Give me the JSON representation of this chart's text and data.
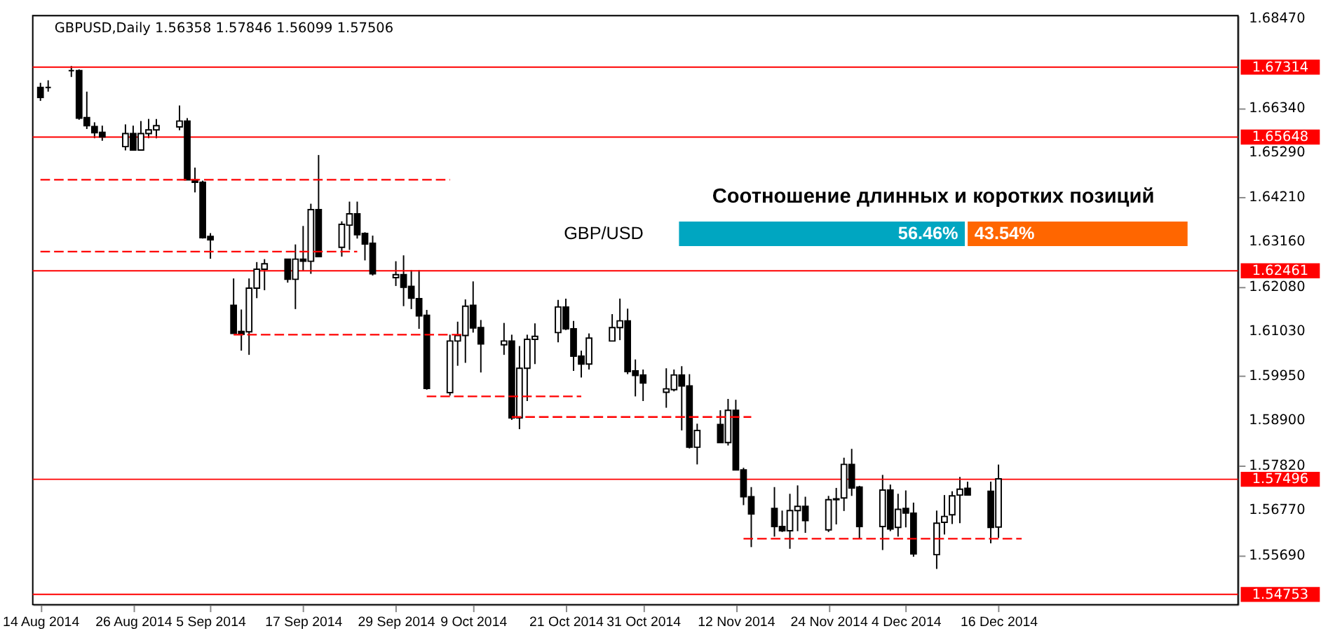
{
  "chart_data": [
    {
      "type": "candlestick",
      "title": "GBPUSD,Daily 1.56358 1.57846 1.56099 1.57506",
      "x": [
        "2014-08-14",
        "2014-08-15",
        "2014-08-18",
        "2014-08-19",
        "2014-08-20",
        "2014-08-21",
        "2014-08-22",
        "2014-08-25",
        "2014-08-26",
        "2014-08-27",
        "2014-08-28",
        "2014-08-29",
        "2014-09-01",
        "2014-09-02",
        "2014-09-03",
        "2014-09-04",
        "2014-09-05",
        "2014-09-08",
        "2014-09-09",
        "2014-09-10",
        "2014-09-11",
        "2014-09-12",
        "2014-09-15",
        "2014-09-16",
        "2014-09-17",
        "2014-09-18",
        "2014-09-19",
        "2014-09-22",
        "2014-09-23",
        "2014-09-24",
        "2014-09-25",
        "2014-09-26",
        "2014-09-29",
        "2014-09-30",
        "2014-10-01",
        "2014-10-02",
        "2014-10-03",
        "2014-10-06",
        "2014-10-07",
        "2014-10-08",
        "2014-10-09",
        "2014-10-10",
        "2014-10-13",
        "2014-10-14",
        "2014-10-15",
        "2014-10-16",
        "2014-10-17",
        "2014-10-20",
        "2014-10-21",
        "2014-10-22",
        "2014-10-23",
        "2014-10-24",
        "2014-10-27",
        "2014-10-28",
        "2014-10-29",
        "2014-10-30",
        "2014-10-31",
        "2014-11-03",
        "2014-11-04",
        "2014-11-05",
        "2014-11-06",
        "2014-11-07",
        "2014-11-10",
        "2014-11-11",
        "2014-11-12",
        "2014-11-13",
        "2014-11-14",
        "2014-11-17",
        "2014-11-18",
        "2014-11-19",
        "2014-11-20",
        "2014-11-21",
        "2014-11-24",
        "2014-11-25",
        "2014-11-26",
        "2014-11-27",
        "2014-11-28",
        "2014-12-01",
        "2014-12-02",
        "2014-12-03",
        "2014-12-04",
        "2014-12-05",
        "2014-12-08",
        "2014-12-09",
        "2014-12-10",
        "2014-12-11",
        "2014-12-12",
        "2014-12-15",
        "2014-12-16"
      ],
      "ohlc": [
        [
          1.6683,
          1.6694,
          1.6651,
          1.6659
        ],
        [
          1.6683,
          1.67,
          1.6673,
          1.6683
        ],
        [
          1.6723,
          1.6734,
          1.6708,
          1.6723
        ],
        [
          1.6723,
          1.6726,
          1.6606,
          1.661
        ],
        [
          1.6611,
          1.6673,
          1.6584,
          1.6592
        ],
        [
          1.659,
          1.66,
          1.6562,
          1.6575
        ],
        [
          1.6576,
          1.6592,
          1.6556,
          1.6565
        ],
        [
          1.6542,
          1.6595,
          1.6533,
          1.6573
        ],
        [
          1.6573,
          1.6592,
          1.6534,
          1.6534
        ],
        [
          1.6534,
          1.6603,
          1.6534,
          1.6573
        ],
        [
          1.6573,
          1.6608,
          1.6562,
          1.6582
        ],
        [
          1.6582,
          1.6608,
          1.6562,
          1.6592
        ],
        [
          1.6589,
          1.664,
          1.6581,
          1.6603
        ],
        [
          1.6603,
          1.661,
          1.6463,
          1.6463
        ],
        [
          1.6463,
          1.6492,
          1.6433,
          1.6457
        ],
        [
          1.6457,
          1.6461,
          1.6323,
          1.6325
        ],
        [
          1.6328,
          1.6336,
          1.6275,
          1.632
        ],
        [
          1.6164,
          1.6228,
          1.6097,
          1.6097
        ],
        [
          1.6102,
          1.6154,
          1.6056,
          1.6095
        ],
        [
          1.6101,
          1.6228,
          1.6046,
          1.6205
        ],
        [
          1.6205,
          1.6267,
          1.6181,
          1.625
        ],
        [
          1.625,
          1.6274,
          1.62,
          1.6263
        ],
        [
          1.6274,
          1.6274,
          1.6218,
          1.6226
        ],
        [
          1.6226,
          1.6309,
          1.6155,
          1.6274
        ],
        [
          1.6274,
          1.6353,
          1.6246,
          1.6269
        ],
        [
          1.6269,
          1.6406,
          1.6239,
          1.6392
        ],
        [
          1.6392,
          1.6522,
          1.628,
          1.628
        ],
        [
          1.6302,
          1.6364,
          1.628,
          1.6357
        ],
        [
          1.6355,
          1.6411,
          1.6296,
          1.6382
        ],
        [
          1.6382,
          1.6411,
          1.6323,
          1.6332
        ],
        [
          1.6335,
          1.6338,
          1.6271,
          1.631
        ],
        [
          1.6312,
          1.633,
          1.6235,
          1.6239
        ],
        [
          1.623,
          1.6269,
          1.621,
          1.6237
        ],
        [
          1.6237,
          1.6283,
          1.6162,
          1.6207
        ],
        [
          1.6209,
          1.6248,
          1.6155,
          1.6181
        ],
        [
          1.618,
          1.6248,
          1.6108,
          1.6139
        ],
        [
          1.614,
          1.6153,
          1.5963,
          1.5966
        ],
        [
          1.5956,
          1.6094,
          1.5949,
          1.6079
        ],
        [
          1.6079,
          1.6125,
          1.602,
          1.6092
        ],
        [
          1.6092,
          1.6178,
          1.6027,
          1.6162
        ],
        [
          1.6164,
          1.6221,
          1.6099,
          1.611
        ],
        [
          1.6111,
          1.6129,
          1.6004,
          1.6072
        ],
        [
          1.607,
          1.6122,
          1.6046,
          1.6079
        ],
        [
          1.6079,
          1.6094,
          1.5891,
          1.5896
        ],
        [
          1.5896,
          1.6067,
          1.5869,
          1.6014
        ],
        [
          1.6014,
          1.6094,
          1.5936,
          1.6083
        ],
        [
          1.6083,
          1.6121,
          1.6024,
          1.609
        ],
        [
          1.6099,
          1.6177,
          1.6076,
          1.616
        ],
        [
          1.616,
          1.618,
          1.6105,
          1.6108
        ],
        [
          1.6108,
          1.6127,
          1.6008,
          1.6043
        ],
        [
          1.6043,
          1.6056,
          1.5992,
          1.6024
        ],
        [
          1.6024,
          1.6097,
          1.6011,
          1.6086
        ],
        [
          1.6079,
          1.6143,
          1.6079,
          1.6111
        ],
        [
          1.6111,
          1.618,
          1.6081,
          1.6127
        ],
        [
          1.6127,
          1.6156,
          1.6,
          1.6006
        ],
        [
          1.6008,
          1.6035,
          1.5947,
          1.5997
        ],
        [
          1.5998,
          1.6011,
          1.5936,
          1.5979
        ],
        [
          1.5957,
          1.6014,
          1.592,
          1.5965
        ],
        [
          1.5963,
          1.6011,
          1.5959,
          1.5998
        ],
        [
          1.5998,
          1.6019,
          1.5866,
          1.5972
        ],
        [
          1.5972,
          1.6,
          1.5823,
          1.5826
        ],
        [
          1.5826,
          1.5882,
          1.5785,
          1.5866
        ],
        [
          1.588,
          1.5914,
          1.5837,
          1.5837
        ],
        [
          1.5837,
          1.5941,
          1.583,
          1.5914
        ],
        [
          1.5914,
          1.5939,
          1.5772,
          1.5772
        ],
        [
          1.5772,
          1.5777,
          1.5688,
          1.5708
        ],
        [
          1.5708,
          1.5731,
          1.5588,
          1.5667
        ],
        [
          1.568,
          1.5731,
          1.5613,
          1.5637
        ],
        [
          1.5637,
          1.5675,
          1.5624,
          1.5627
        ],
        [
          1.5627,
          1.5715,
          1.5584,
          1.5675
        ],
        [
          1.5675,
          1.5735,
          1.5626,
          1.5685
        ],
        [
          1.5685,
          1.5708,
          1.5622,
          1.5651
        ],
        [
          1.5629,
          1.571,
          1.5624,
          1.5701
        ],
        [
          1.5701,
          1.5729,
          1.5642,
          1.5703
        ],
        [
          1.5705,
          1.5801,
          1.5674,
          1.5785
        ],
        [
          1.5785,
          1.5822,
          1.571,
          1.5729
        ],
        [
          1.5731,
          1.5734,
          1.5608,
          1.5637
        ],
        [
          1.5637,
          1.576,
          1.5581,
          1.5724
        ],
        [
          1.5724,
          1.5737,
          1.5626,
          1.5631
        ],
        [
          1.5635,
          1.5715,
          1.5613,
          1.5678
        ],
        [
          1.568,
          1.5723,
          1.5635,
          1.5669
        ],
        [
          1.5669,
          1.5694,
          1.5565,
          1.5572
        ],
        [
          1.557,
          1.5675,
          1.5536,
          1.5645
        ],
        [
          1.5647,
          1.5712,
          1.5618,
          1.5661
        ],
        [
          1.5665,
          1.5721,
          1.5643,
          1.571
        ],
        [
          1.5712,
          1.5755,
          1.5645,
          1.5726
        ],
        [
          1.5728,
          1.5744,
          1.5712,
          1.5712
        ],
        [
          1.5721,
          1.5744,
          1.5597,
          1.5635
        ],
        [
          1.56358,
          1.57846,
          1.56099,
          1.57506
        ]
      ],
      "xlim": [
        "2014-08-13",
        "2015-01-16"
      ],
      "ylim": [
        1.5451,
        1.6854
      ],
      "yticks": [
        {
          "value": 1.6847,
          "label": "1.68470"
        },
        {
          "value": 1.6634,
          "label": "1.66340"
        },
        {
          "value": 1.6529,
          "label": "1.65290"
        },
        {
          "value": 1.6421,
          "label": "1.64210"
        },
        {
          "value": 1.6316,
          "label": "1.63160"
        },
        {
          "value": 1.6208,
          "label": "1.62080"
        },
        {
          "value": 1.6103,
          "label": "1.61030"
        },
        {
          "value": 1.5995,
          "label": "1.59950"
        },
        {
          "value": 1.589,
          "label": "1.58900"
        },
        {
          "value": 1.5782,
          "label": "1.57820"
        },
        {
          "value": 1.5677,
          "label": "1.56770"
        },
        {
          "value": 1.5569,
          "label": "1.55690"
        }
      ],
      "xticks": [
        {
          "value": "2014-08-14",
          "label": "14 Aug 2014"
        },
        {
          "value": "2014-08-26",
          "label": "26 Aug 2014"
        },
        {
          "value": "2014-09-05",
          "label": "5 Sep 2014"
        },
        {
          "value": "2014-09-17",
          "label": "17 Sep 2014"
        },
        {
          "value": "2014-09-29",
          "label": "29 Sep 2014"
        },
        {
          "value": "2014-10-09",
          "label": "9 Oct 2014"
        },
        {
          "value": "2014-10-21",
          "label": "21 Oct 2014"
        },
        {
          "value": "2014-10-31",
          "label": "31 Oct 2014"
        },
        {
          "value": "2014-11-12",
          "label": "12 Nov 2014"
        },
        {
          "value": "2014-11-24",
          "label": "24 Nov 2014"
        },
        {
          "value": "2014-12-04",
          "label": "4 Dec 2014"
        },
        {
          "value": "2014-12-16",
          "label": "16 Dec 2014"
        }
      ],
      "grid": false,
      "ref_lines": [
        {
          "axis": "y",
          "value": 1.67314,
          "label": "1.67314",
          "color": "#ff0000"
        },
        {
          "axis": "y",
          "value": 1.65648,
          "label": "1.65648",
          "color": "#ff0000"
        },
        {
          "axis": "y",
          "value": 1.62461,
          "label": "1.62461",
          "color": "#ff0000"
        },
        {
          "axis": "y",
          "value": 1.57496,
          "label": "1.57496",
          "color": "#ff0000"
        },
        {
          "axis": "y",
          "value": 1.54753,
          "label": "1.54753",
          "color": "#ff0000"
        }
      ],
      "series": [
        {
          "type": "line",
          "color": "#ff0000",
          "line_style": "dashed",
          "x": [
            "2014-08-14",
            "2014-10-06"
          ],
          "values": [
            1.6463,
            1.6463
          ]
        },
        {
          "type": "line",
          "color": "#ff0000",
          "line_style": "dashed",
          "x": [
            "2014-08-14",
            "2014-09-24"
          ],
          "values": [
            1.6292,
            1.6292
          ]
        },
        {
          "type": "line",
          "color": "#ff0000",
          "line_style": "dashed",
          "x": [
            "2014-09-08",
            "2014-10-08"
          ],
          "values": [
            1.6094,
            1.6094
          ]
        },
        {
          "type": "line",
          "color": "#ff0000",
          "line_style": "dashed",
          "x": [
            "2014-10-03",
            "2014-10-23"
          ],
          "values": [
            1.5947,
            1.5947
          ]
        },
        {
          "type": "line",
          "color": "#ff0000",
          "line_style": "dashed",
          "x": [
            "2014-10-14",
            "2014-11-14"
          ],
          "values": [
            1.5898,
            1.5898
          ]
        },
        {
          "type": "line",
          "color": "#ff0000",
          "line_style": "dashed",
          "x": [
            "2014-11-13",
            "2014-12-19"
          ],
          "values": [
            1.5608,
            1.5608
          ]
        }
      ]
    },
    {
      "type": "bar",
      "title": "Соотношение длинных и коротких позиций",
      "categories": [
        "GBP/USD"
      ],
      "orientation": "horizontal",
      "stacked": true,
      "series": [
        {
          "color": "#00a6c1",
          "values": [
            56.46
          ],
          "value_labels": [
            "56.46%"
          ]
        },
        {
          "color": "#ff6600",
          "values": [
            43.54
          ],
          "value_labels": [
            "43.54%"
          ]
        }
      ]
    }
  ]
}
